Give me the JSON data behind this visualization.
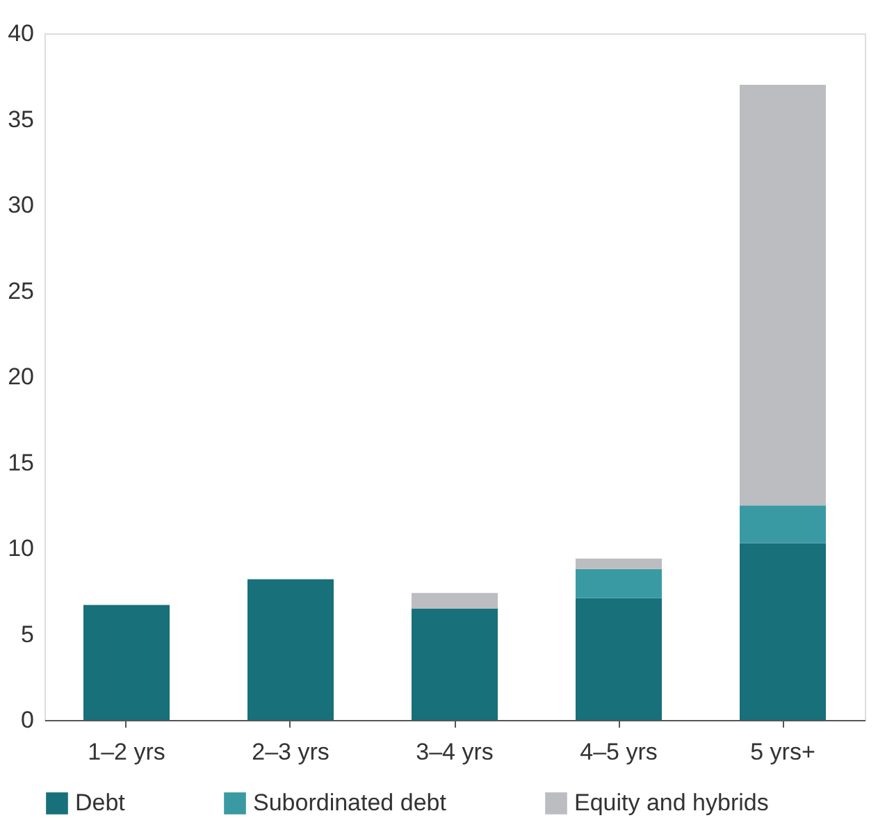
{
  "chart_data": {
    "type": "bar",
    "stacked": true,
    "categories": [
      "1–2 yrs",
      "2–3 yrs",
      "3–4 yrs",
      "4–5 yrs",
      "5 yrs+"
    ],
    "series": [
      {
        "name": "Debt",
        "color": "#17707a",
        "values": [
          6.7,
          8.2,
          6.5,
          7.1,
          10.3
        ]
      },
      {
        "name": "Subordinated debt",
        "color": "#3a9aa3",
        "values": [
          0,
          0,
          0,
          1.7,
          2.2
        ]
      },
      {
        "name": "Equity and hybrids",
        "color": "#bcbdc0",
        "values": [
          0,
          0,
          0.9,
          0.6,
          24.5
        ]
      }
    ],
    "ylim": [
      0,
      40
    ],
    "yticks": [
      0,
      5,
      10,
      15,
      20,
      25,
      30,
      35,
      40
    ],
    "grid": false,
    "legend": "bottom"
  }
}
